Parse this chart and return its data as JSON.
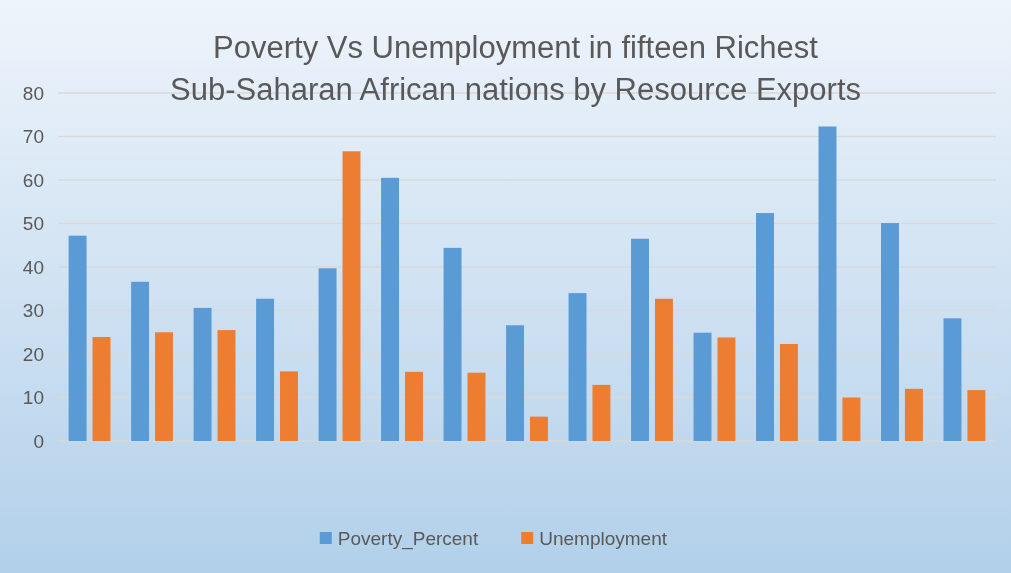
{
  "chart_data": {
    "type": "bar",
    "title": "Poverty Vs Unemployment in fifteen Richest Sub-Saharan African nations by Resource Exports",
    "categories": [
      null,
      null,
      null,
      null,
      null,
      null,
      null,
      null,
      null,
      null,
      null,
      null,
      null,
      null,
      null
    ],
    "series": [
      {
        "name": "Poverty_Percent",
        "color": "#5b9bd5",
        "values": [
          47.2,
          36.6,
          30.6,
          32.7,
          39.7,
          60.5,
          44.4,
          26.6,
          34.0,
          46.5,
          24.9,
          52.4,
          72.3,
          50.1,
          28.2
        ]
      },
      {
        "name": "Unemployment",
        "color": "#ed7d31",
        "values": [
          23.9,
          25.0,
          25.5,
          16.0,
          66.6,
          15.9,
          15.7,
          5.6,
          12.9,
          32.7,
          23.8,
          22.3,
          10.0,
          12.0,
          11.7
        ]
      }
    ],
    "ylim": [
      0,
      80
    ],
    "yticks": [
      0,
      10,
      20,
      30,
      40,
      50,
      60,
      70,
      80
    ],
    "grid": "y",
    "legend": "bottom"
  }
}
